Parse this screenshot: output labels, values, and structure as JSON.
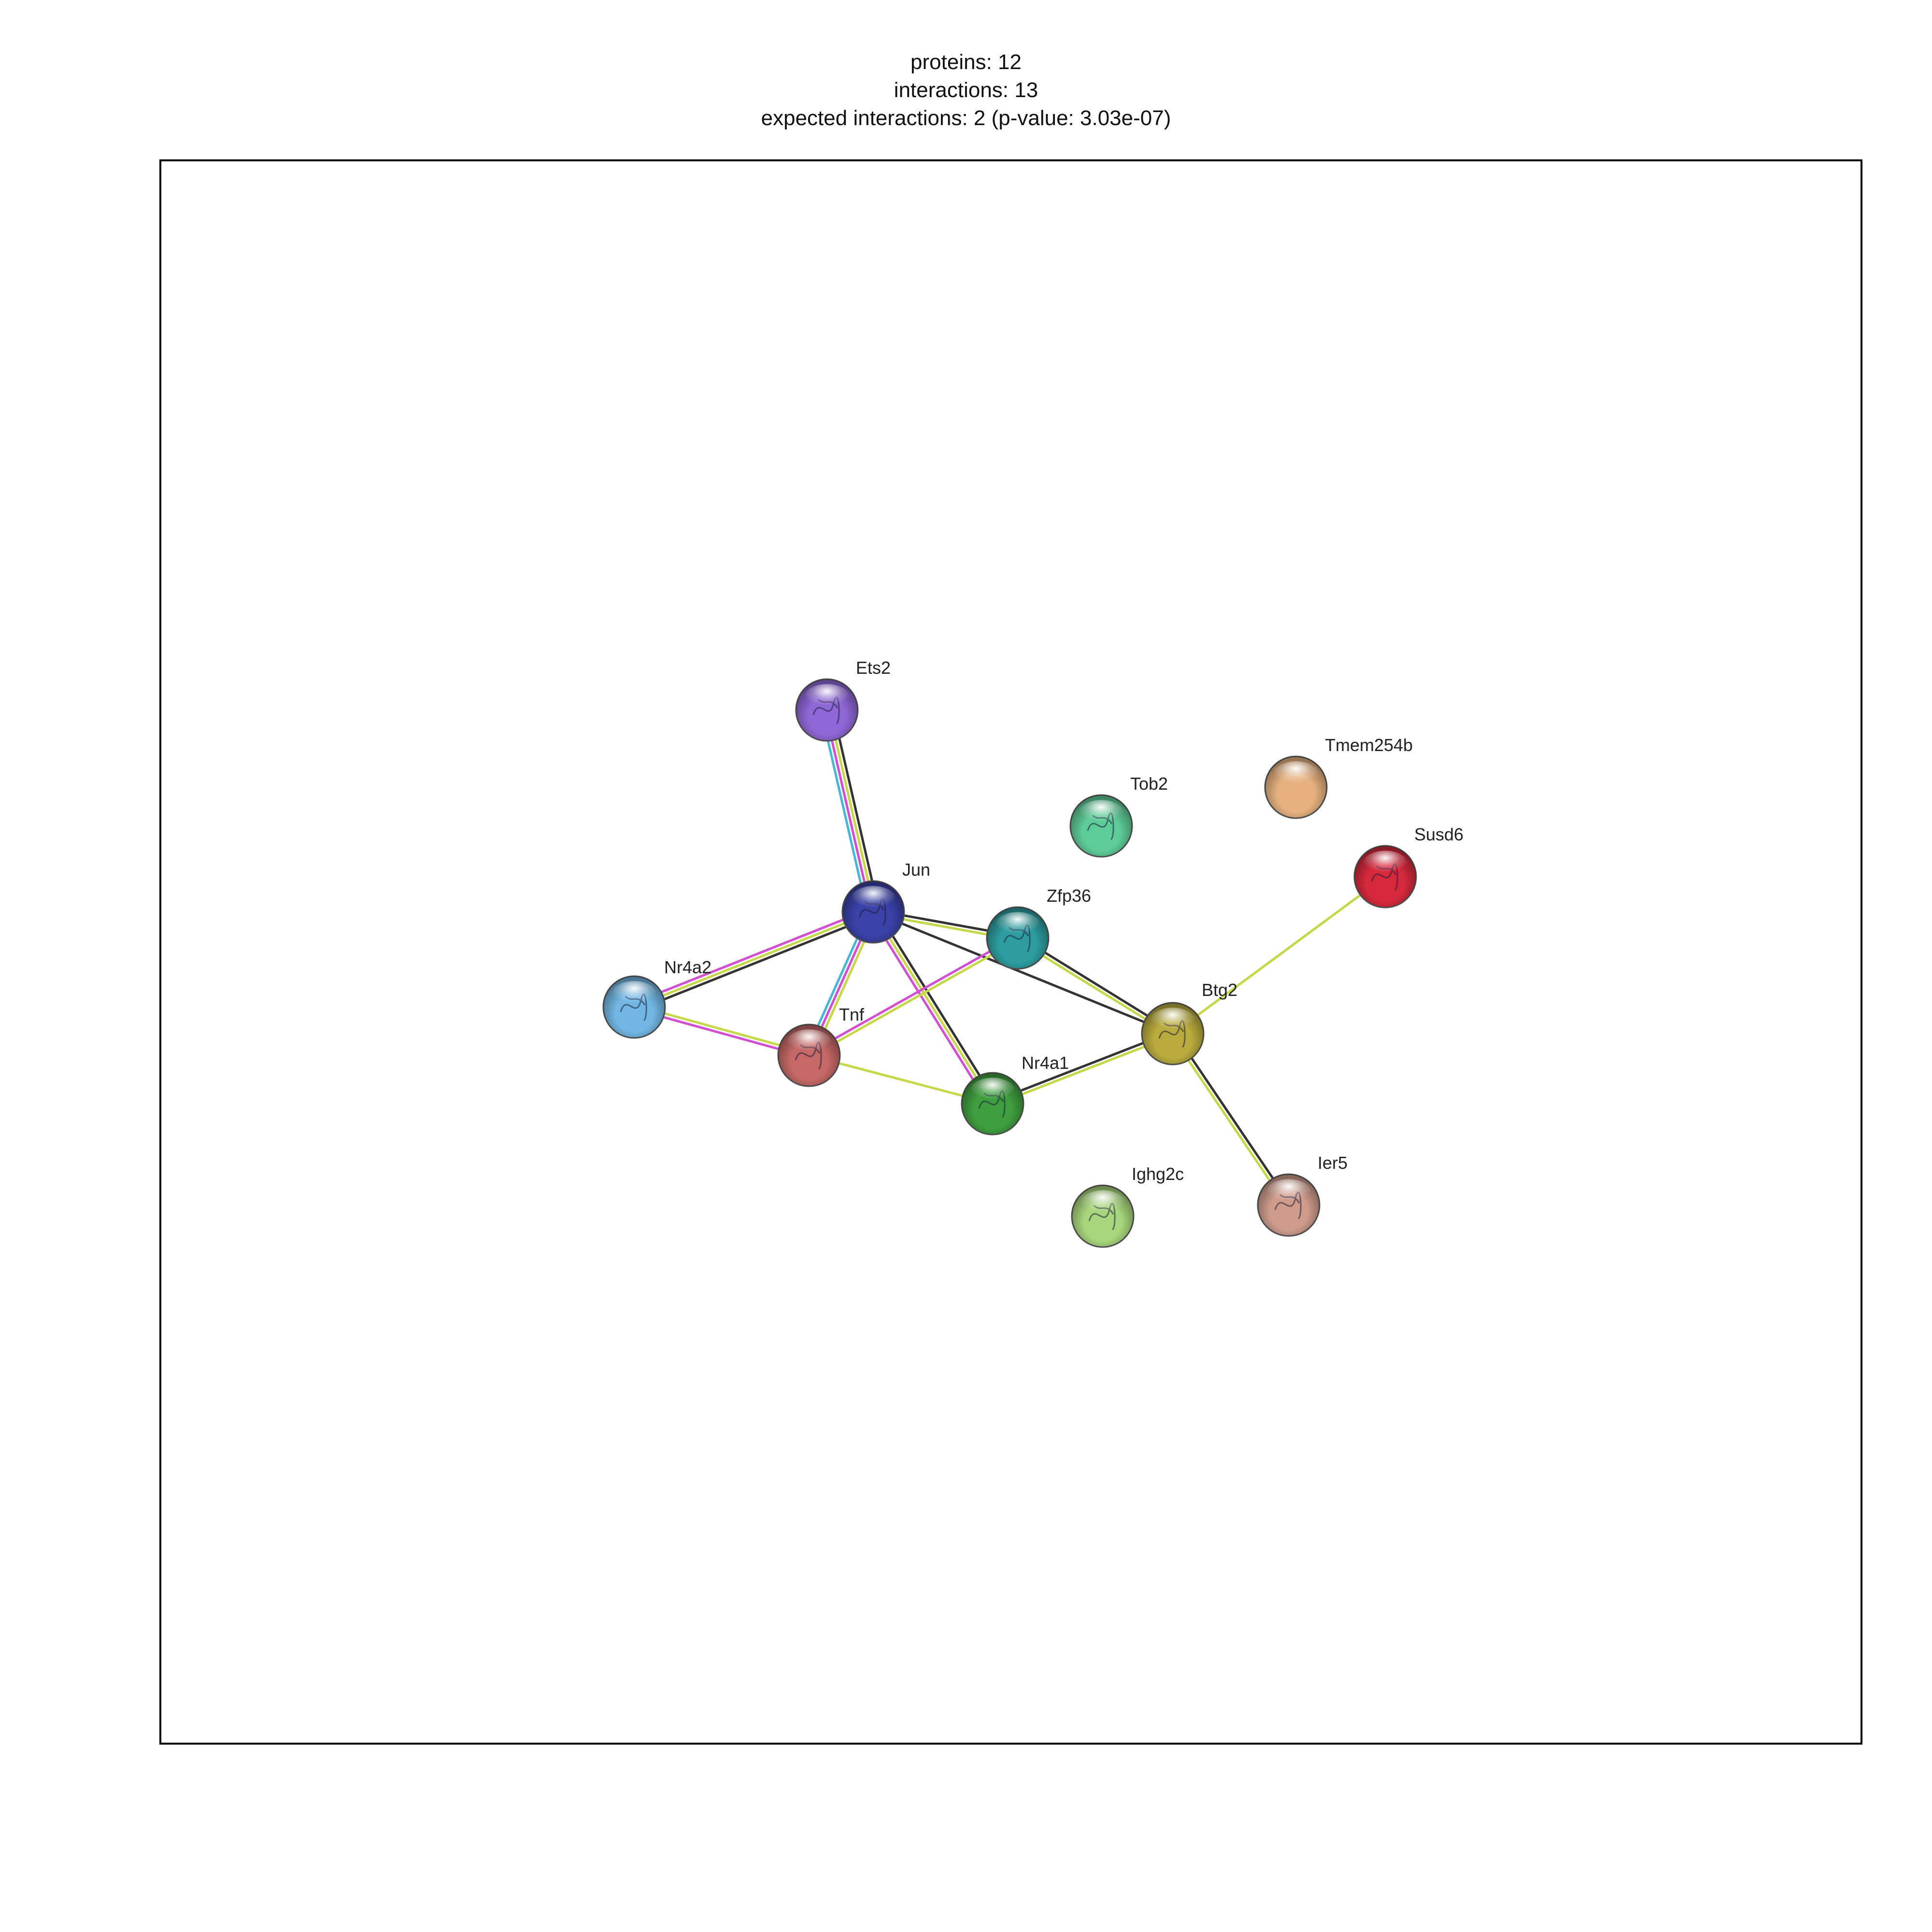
{
  "summary": {
    "proteins": "proteins: 12",
    "interactions": "interactions: 13",
    "expected": "expected interactions: 2 (p-value: 3.03e-07)"
  },
  "colors": {
    "frame": "#000000",
    "edge_coexpression": "#333333",
    "edge_textmining": "#c6d84a",
    "edge_experimental": "#d24fd2",
    "edge_database": "#47b7d8"
  },
  "nodes": [
    {
      "id": "Ets2",
      "label": "Ets2",
      "color": "#8f67d6",
      "icon": "protein-structure-icon"
    },
    {
      "id": "Tob2",
      "label": "Tob2",
      "color": "#5ecc98",
      "icon": "protein-structure-icon"
    },
    {
      "id": "Tmem254b",
      "label": "Tmem254b",
      "color": "#e6b17f",
      "icon": ""
    },
    {
      "id": "Susd6",
      "label": "Susd6",
      "color": "#d6293c",
      "icon": "protein-structure-icon"
    },
    {
      "id": "Jun",
      "label": "Jun",
      "color": "#3a41a7",
      "icon": "protein-structure-icon"
    },
    {
      "id": "Zfp36",
      "label": "Zfp36",
      "color": "#2d9d9f",
      "icon": "protein-structure-icon"
    },
    {
      "id": "Nr4a2",
      "label": "Nr4a2",
      "color": "#72b7e4",
      "icon": "protein-structure-icon"
    },
    {
      "id": "Btg2",
      "label": "Btg2",
      "color": "#b9ab3d",
      "icon": "protein-structure-icon"
    },
    {
      "id": "Tnf",
      "label": "Tnf",
      "color": "#c56866",
      "icon": "protein-structure-icon"
    },
    {
      "id": "Nr4a1",
      "label": "Nr4a1",
      "color": "#3f9f3f",
      "icon": "protein-structure-icon"
    },
    {
      "id": "Ighg2c",
      "label": "Ighg2c",
      "color": "#a8d67c",
      "icon": "protein-structure-icon"
    },
    {
      "id": "Ier5",
      "label": "Ier5",
      "color": "#cf9c8c",
      "icon": "protein-structure-icon"
    }
  ],
  "edges": [
    {
      "source": "Ets2",
      "target": "Jun",
      "evidence": [
        "coexpression",
        "textmining",
        "experimental",
        "database"
      ]
    },
    {
      "source": "Jun",
      "target": "Zfp36",
      "evidence": [
        "coexpression",
        "textmining"
      ]
    },
    {
      "source": "Jun",
      "target": "Btg2",
      "evidence": [
        "coexpression"
      ]
    },
    {
      "source": "Jun",
      "target": "Nr4a2",
      "evidence": [
        "coexpression",
        "textmining",
        "experimental"
      ]
    },
    {
      "source": "Jun",
      "target": "Tnf",
      "evidence": [
        "textmining",
        "experimental",
        "database"
      ]
    },
    {
      "source": "Jun",
      "target": "Nr4a1",
      "evidence": [
        "coexpression",
        "textmining",
        "experimental"
      ]
    },
    {
      "source": "Zfp36",
      "target": "Tnf",
      "evidence": [
        "textmining",
        "experimental"
      ]
    },
    {
      "source": "Zfp36",
      "target": "Btg2",
      "evidence": [
        "coexpression",
        "textmining"
      ]
    },
    {
      "source": "Nr4a2",
      "target": "Tnf",
      "evidence": [
        "textmining",
        "experimental"
      ]
    },
    {
      "source": "Tnf",
      "target": "Nr4a1",
      "evidence": [
        "textmining"
      ]
    },
    {
      "source": "Nr4a1",
      "target": "Btg2",
      "evidence": [
        "coexpression",
        "textmining"
      ]
    },
    {
      "source": "Btg2",
      "target": "Susd6",
      "evidence": [
        "textmining"
      ]
    },
    {
      "source": "Btg2",
      "target": "Ier5",
      "evidence": [
        "coexpression",
        "textmining"
      ]
    }
  ]
}
